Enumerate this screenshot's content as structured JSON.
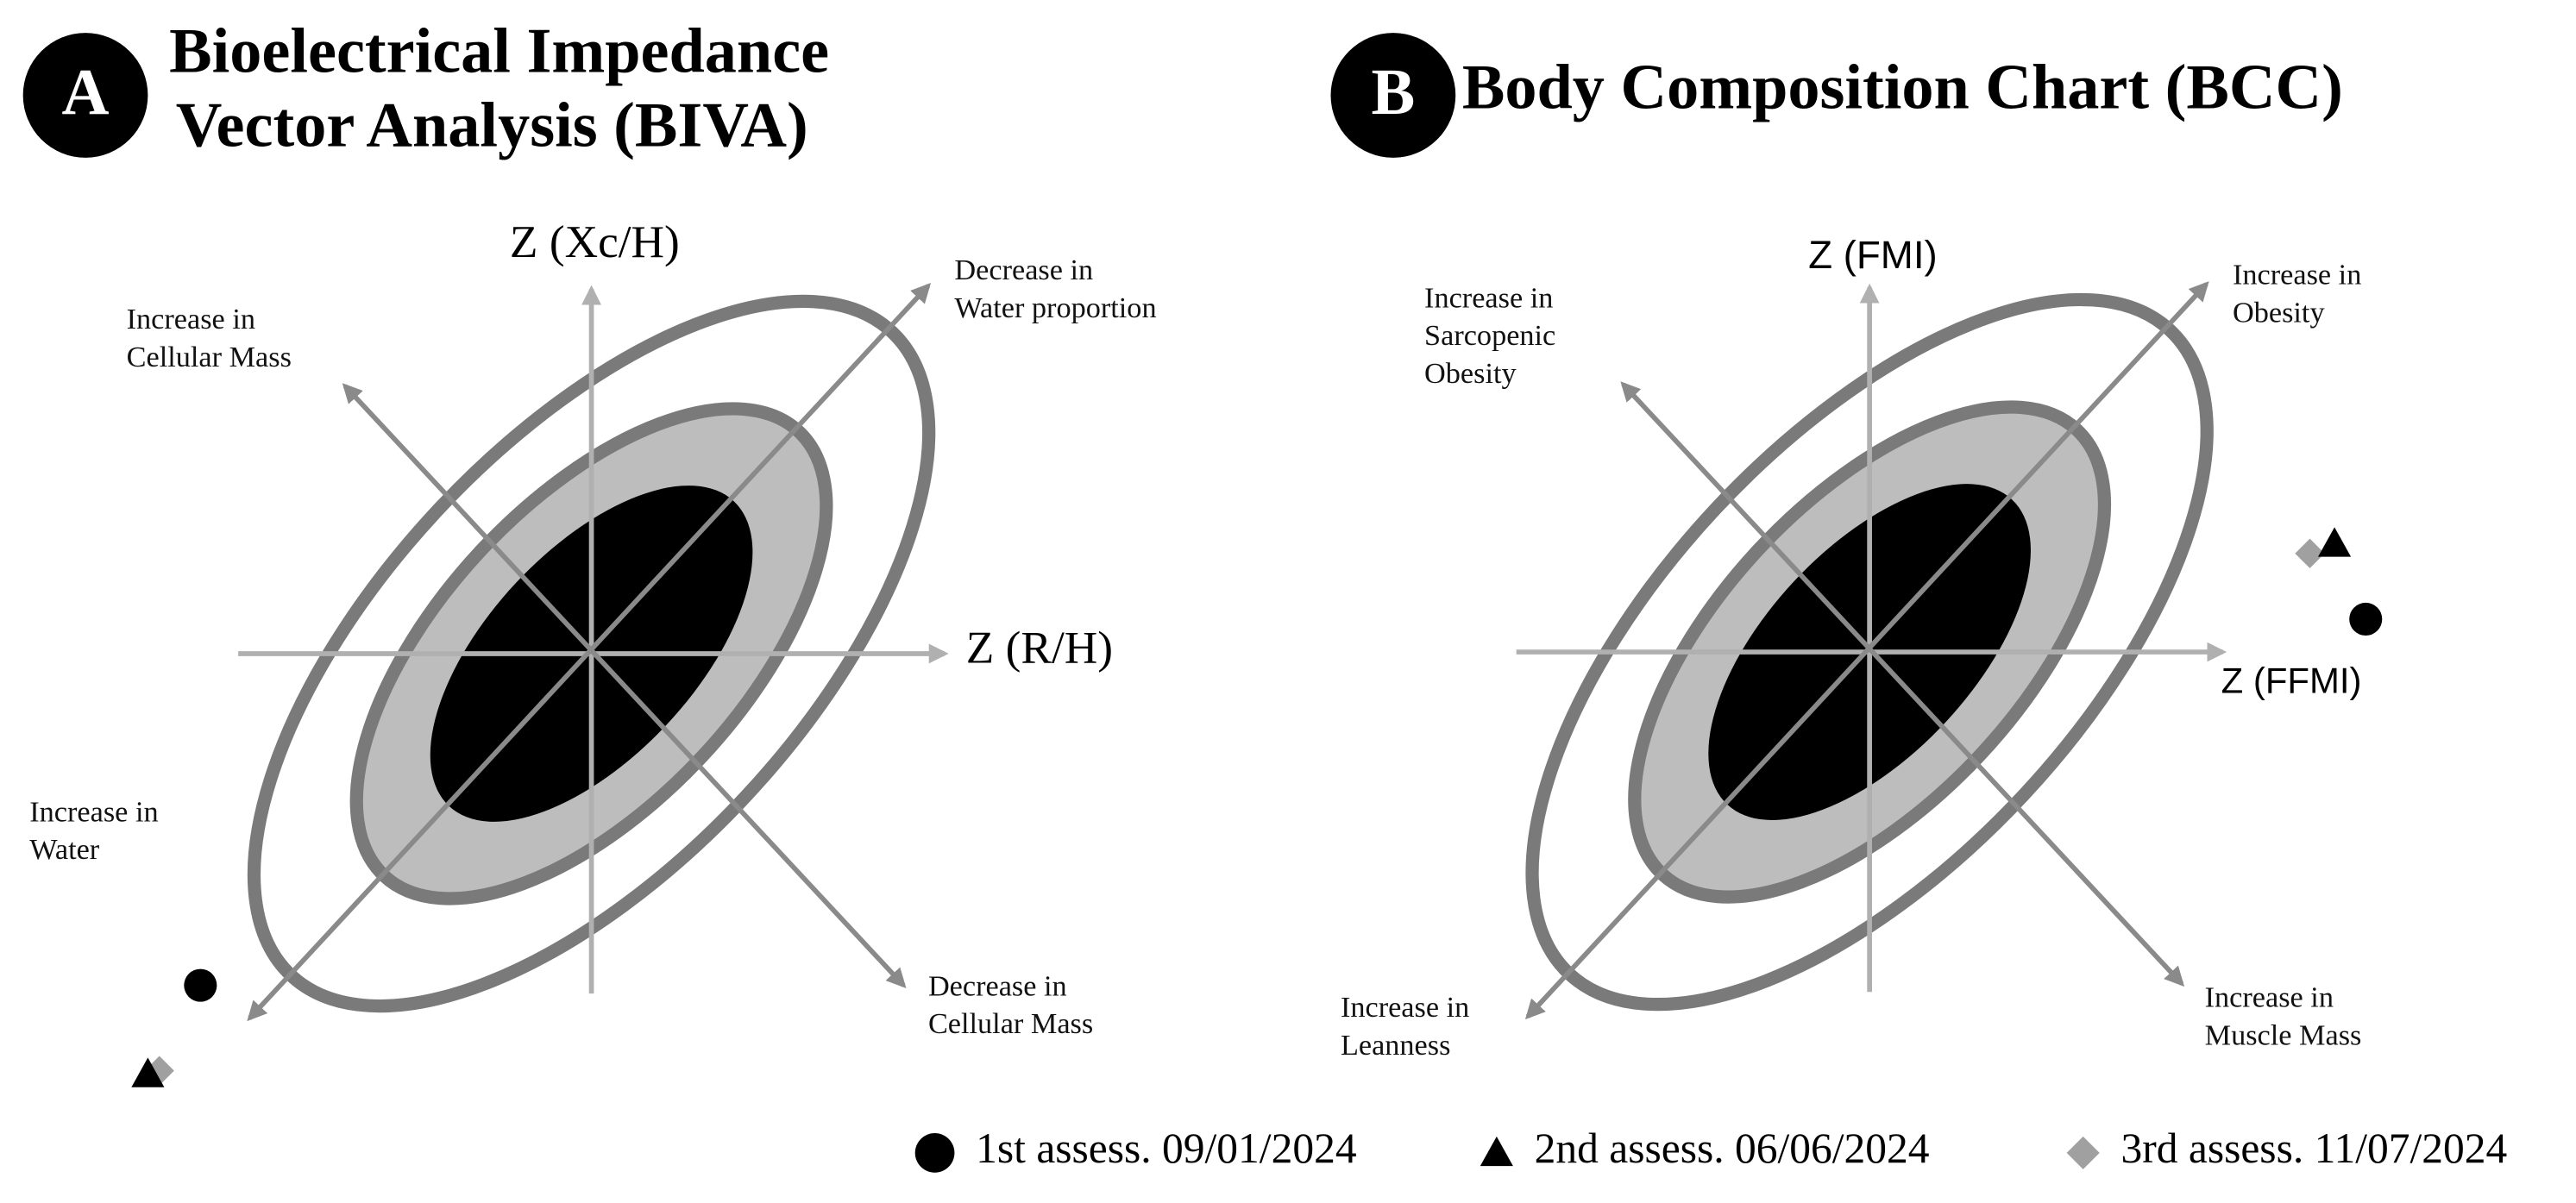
{
  "panels": [
    {
      "letter": "A",
      "title": [
        "Bioelectrical Impedance",
        "Vector Analysis (BIVA)"
      ],
      "y_axis": "Z (Xc/H)",
      "x_axis": "Z (R/H)",
      "annotations": [
        [
          "Decrease in",
          "Water proportion"
        ],
        [
          "Increase in",
          "Cellular Mass"
        ],
        [
          "Increase in",
          "Water"
        ],
        [
          "Decrease in",
          "Cellular Mass"
        ]
      ]
    },
    {
      "letter": "B",
      "title": [
        "Body Composition Chart (BCC)"
      ],
      "y_axis": "Z (FMI)",
      "x_axis": "Z (FFMI)",
      "annotations": [
        [
          "Increase in",
          "Obesity"
        ],
        [
          "Increase in",
          "Sarcopenic",
          "Obesity"
        ],
        [
          "Increase in",
          "Leanness"
        ],
        [
          "Increase in",
          "Muscle Mass"
        ]
      ]
    }
  ],
  "legend": [
    "1st assess. 09/01/2024",
    "2nd assess. 06/06/2024",
    "3rd assess. 11/07/2024"
  ]
}
